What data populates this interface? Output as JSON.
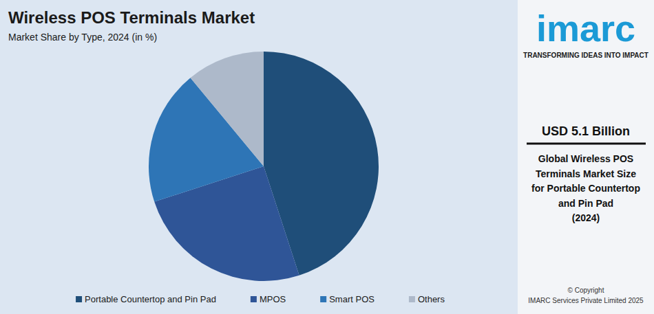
{
  "chart_data": {
    "type": "pie",
    "title": "Wireless POS Terminals Market",
    "subtitle": "Market Share by Type, 2024 (in %)",
    "categories": [
      "Portable Countertop and Pin Pad",
      "MPOS",
      "Smart POS",
      "Others"
    ],
    "values": [
      45,
      25,
      19,
      11
    ],
    "colors": [
      "#1f4e79",
      "#2f5597",
      "#2e75b6",
      "#adb9ca"
    ],
    "legend": "bottom"
  },
  "sidebar": {
    "logo": "imarc",
    "tagline": "TRANSFORMING IDEAS INTO IMPACT",
    "headline": "USD 5.1 Billion",
    "description": [
      "Global Wireless POS",
      "Terminals Market Size",
      "for Portable Countertop",
      "and Pin Pad",
      "(2024)"
    ],
    "copyright": [
      "© Copyright",
      "IMARC Services Private Limited 2025"
    ]
  }
}
